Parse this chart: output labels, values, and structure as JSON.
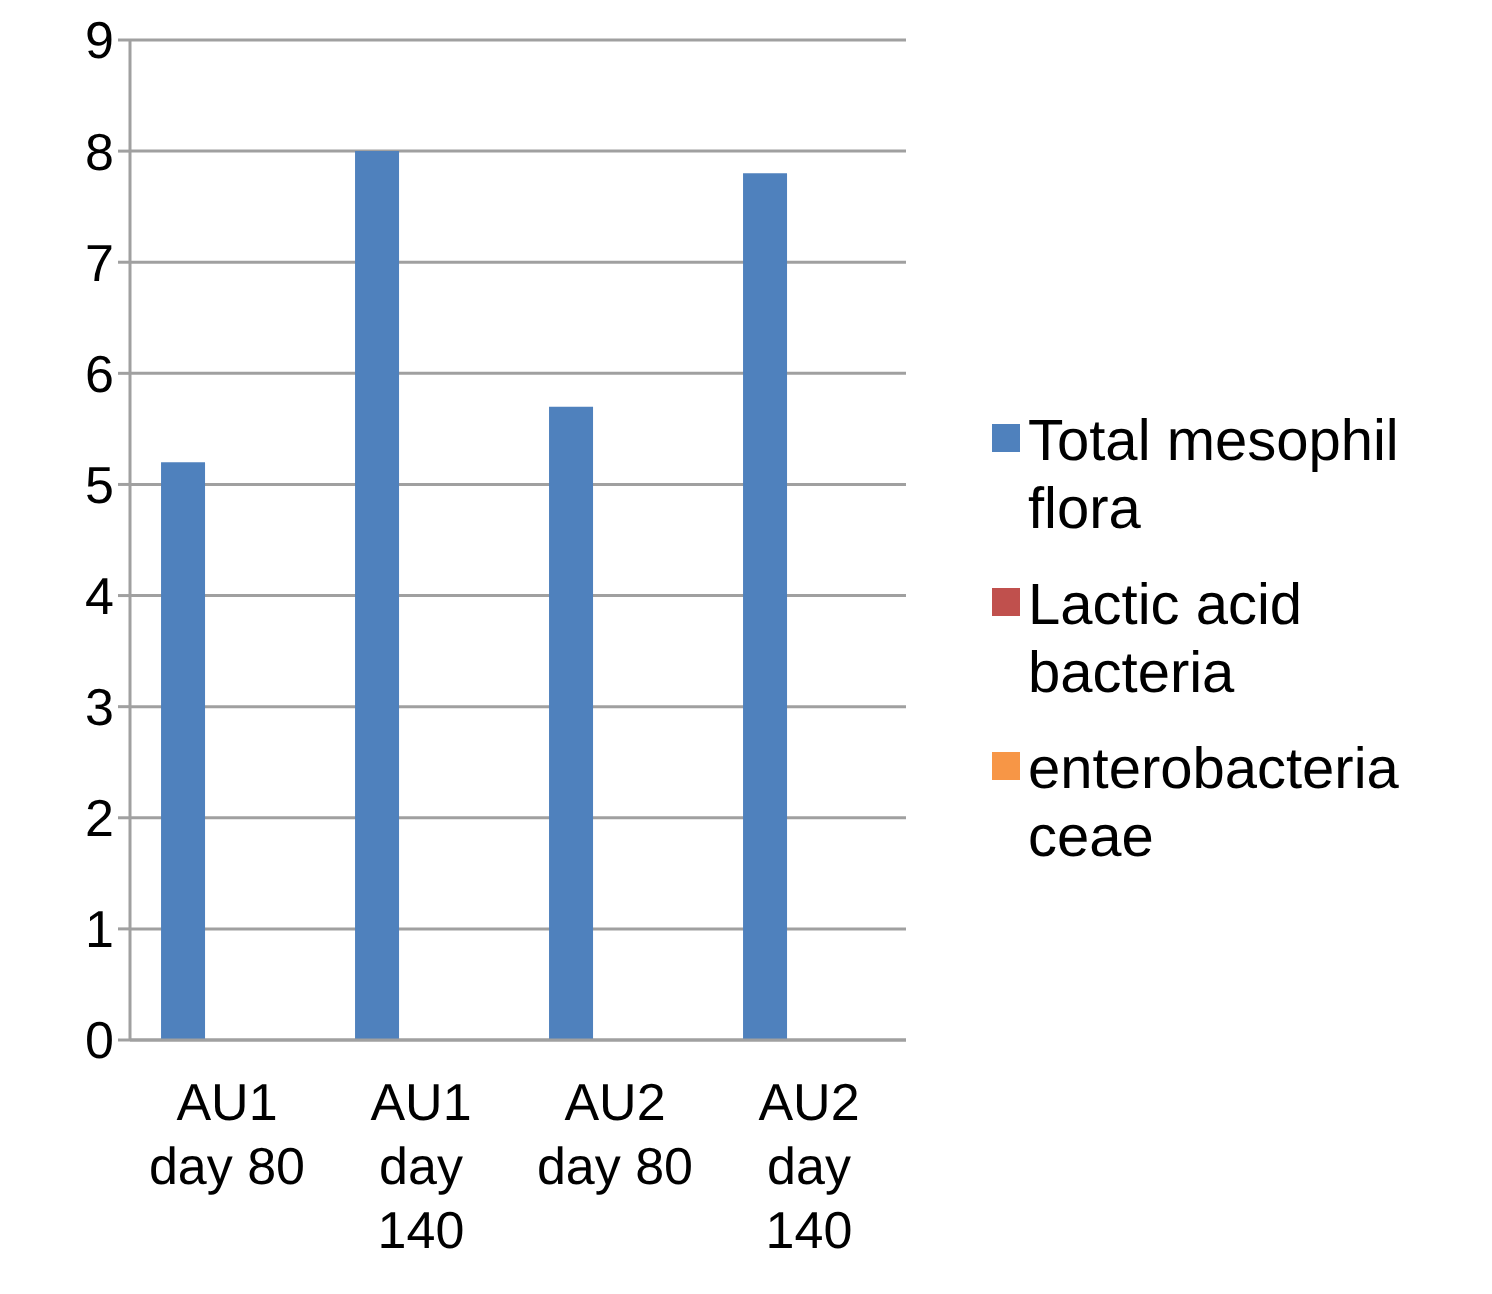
{
  "chart_data": {
    "type": "bar",
    "categories": [
      "AU1 day 80",
      "AU1 day 140",
      "AU2 day 80",
      "AU2 day 140"
    ],
    "series": [
      {
        "name": "Total mesophil flora",
        "color": "#4f81bd",
        "values": [
          5.2,
          8.0,
          5.7,
          7.8
        ]
      },
      {
        "name": "Lactic acid bacteria",
        "color": "#c0504d",
        "values": [
          null,
          null,
          null,
          null
        ]
      },
      {
        "name": "enterobacteriaceae",
        "color": "#f79646",
        "values": [
          null,
          null,
          null,
          null
        ]
      }
    ],
    "ylim": [
      0,
      9
    ],
    "yticks": [
      0,
      1,
      2,
      3,
      4,
      5,
      6,
      7,
      8,
      9
    ],
    "grid": "y",
    "legend": "right"
  }
}
